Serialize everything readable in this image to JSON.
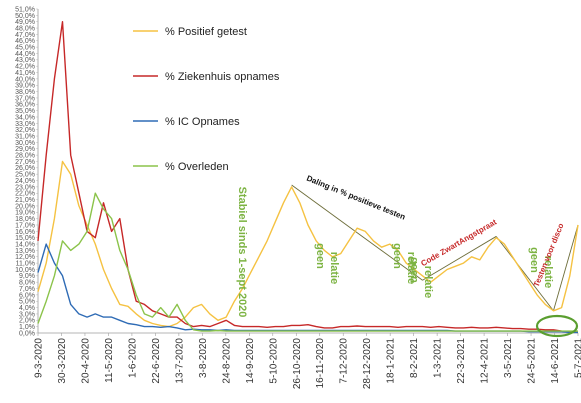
{
  "chart_data": {
    "type": "line",
    "title": "",
    "xlabel": "",
    "ylabel": "",
    "ylim": [
      0,
      51
    ],
    "y_ticks": [
      "0,0%",
      "1,0%",
      "2,0%",
      "3,0%",
      "4,0%",
      "5,0%",
      "6,0%",
      "7,0%",
      "8,0%",
      "9,0%",
      "10,0%",
      "11,0%",
      "12,0%",
      "13,0%",
      "14,0%",
      "15,0%",
      "16,0%",
      "17,0%",
      "18,0%",
      "19,0%",
      "20,0%",
      "21,0%",
      "22,0%",
      "23,0%",
      "24,0%",
      "25,0%",
      "26,0%",
      "27,0%",
      "28,0%",
      "29,0%",
      "30,0%",
      "31,0%",
      "32,0%",
      "33,0%",
      "34,0%",
      "35,0%",
      "36,0%",
      "37,0%",
      "38,0%",
      "39,0%",
      "40,0%",
      "41,0%",
      "42,0%",
      "43,0%",
      "44,0%",
      "45,0%",
      "46,0%",
      "47,0%",
      "48,0%",
      "49,0%",
      "50,0%",
      "51,0%"
    ],
    "x_ticks": [
      "9-3-2020",
      "30-3-2020",
      "20-4-2020",
      "11-5-2020",
      "1-6-2020",
      "22-6-2020",
      "13-7-2020",
      "3-8-2020",
      "24-8-2020",
      "14-9-2020",
      "5-10-2020",
      "26-10-2020",
      "16-11-2020",
      "7-12-2020",
      "28-12-2020",
      "18-1-2021",
      "8-2-2021",
      "1-3-2021",
      "22-3-2021",
      "12-4-2021",
      "3-5-2021",
      "24-5-2021",
      "14-6-2021",
      "5-7-2021"
    ],
    "grid": false,
    "legend": "top-left inside plot",
    "series": [
      {
        "name": "% Positief getest",
        "color": "#F5C242",
        "values": [
          6.5,
          11,
          18,
          27,
          25,
          20,
          17,
          14,
          10,
          7,
          4.5,
          4.2,
          3,
          2,
          1.5,
          1.2,
          1,
          1.5,
          2.5,
          4,
          4.5,
          3,
          2,
          2.5,
          5,
          7,
          9.5,
          12,
          14.5,
          17.5,
          20.5,
          23,
          20.5,
          17,
          14.5,
          13,
          12,
          12.5,
          14.5,
          16.5,
          16,
          14.5,
          13.5,
          14,
          13,
          11,
          10,
          9,
          8,
          9,
          10,
          10.5,
          11,
          12,
          11.5,
          13.5,
          15,
          14,
          12,
          10,
          8,
          6,
          4.5,
          3.5,
          4,
          9,
          17
        ]
      },
      {
        "name": "% Ziekenhuis opnames",
        "color": "#C62828",
        "values": [
          14.5,
          28,
          40,
          49,
          28,
          22,
          16,
          15,
          20.5,
          16,
          18,
          10,
          5,
          4.5,
          3.5,
          3,
          2.5,
          2.5,
          1.5,
          1,
          1.2,
          1,
          1.5,
          2,
          1.2,
          1,
          1,
          1,
          0.9,
          1,
          1,
          1.2,
          1.2,
          1.3,
          1,
          0.8,
          0.8,
          1,
          1,
          1.1,
          1,
          1,
          1,
          1,
          0.9,
          1,
          1,
          1,
          0.9,
          1,
          0.9,
          0.8,
          0.8,
          0.9,
          0.8,
          0.8,
          0.9,
          0.8,
          0.7,
          0.7,
          0.6,
          0.6,
          0.5,
          0.5,
          0.3,
          0.2,
          0.1
        ]
      },
      {
        "name": "% IC Opnames",
        "color": "#2E6BB5",
        "values": [
          9.5,
          14,
          11,
          9,
          4.5,
          3,
          2.5,
          3,
          2.5,
          2.5,
          2,
          1.5,
          1.3,
          1,
          1,
          0.9,
          1,
          0.8,
          0.5,
          0.6,
          0.5,
          0.5,
          0.4,
          0.5,
          0.4,
          0.4,
          0.4,
          0.4,
          0.4,
          0.4,
          0.4,
          0.4,
          0.4,
          0.4,
          0.4,
          0.4,
          0.4,
          0.4,
          0.4,
          0.4,
          0.4,
          0.4,
          0.4,
          0.4,
          0.4,
          0.4,
          0.4,
          0.4,
          0.4,
          0.4,
          0.4,
          0.3,
          0.3,
          0.3,
          0.3,
          0.3,
          0.3,
          0.3,
          0.3,
          0.3,
          0.2,
          0.2,
          0.2,
          0.2,
          0.2,
          0.1,
          0.1
        ]
      },
      {
        "name": "% Overleden",
        "color": "#8BC34A",
        "values": [
          1.5,
          5,
          9,
          14.5,
          13,
          14,
          16,
          22,
          19.5,
          18,
          13,
          10,
          6,
          3,
          2.5,
          4,
          2.5,
          4.5,
          2,
          0.5,
          0.3,
          0.3,
          0.4,
          0.3,
          0.3,
          0.3,
          0.3,
          0.3,
          0.3,
          0.3,
          0.3,
          0.3,
          0.3,
          0.3,
          0.3,
          0.3,
          0.3,
          0.3,
          0.3,
          0.3,
          0.3,
          0.3,
          0.3,
          0.3,
          0.3,
          0.3,
          0.3,
          0.3,
          0.3,
          0.3,
          0.3,
          0.3,
          0.3,
          0.3,
          0.3,
          0.3,
          0.3,
          0.3,
          0.3,
          0.3,
          0.3,
          0.3,
          0.3,
          0.3,
          0.3,
          0.3,
          0.3
        ]
      }
    ],
    "annotations": [
      {
        "text": "Stabiel sinds 1-sept 2020",
        "color": "#7CB342"
      },
      {
        "text": "Daling in % positieve testen",
        "color": "#111111"
      },
      {
        "text": "geen relatie",
        "color": "#7CB342"
      },
      {
        "text": "geen relatie",
        "color": "#7CB342"
      },
      {
        "text": "geen relatie",
        "color": "#7CB342"
      },
      {
        "text": "geen relatie",
        "color": "#7CB342"
      },
      {
        "text": "Code ZwartAngstpraat",
        "color": "#C62828"
      },
      {
        "text": "Testen voor disco",
        "color": "#C62828"
      }
    ]
  }
}
